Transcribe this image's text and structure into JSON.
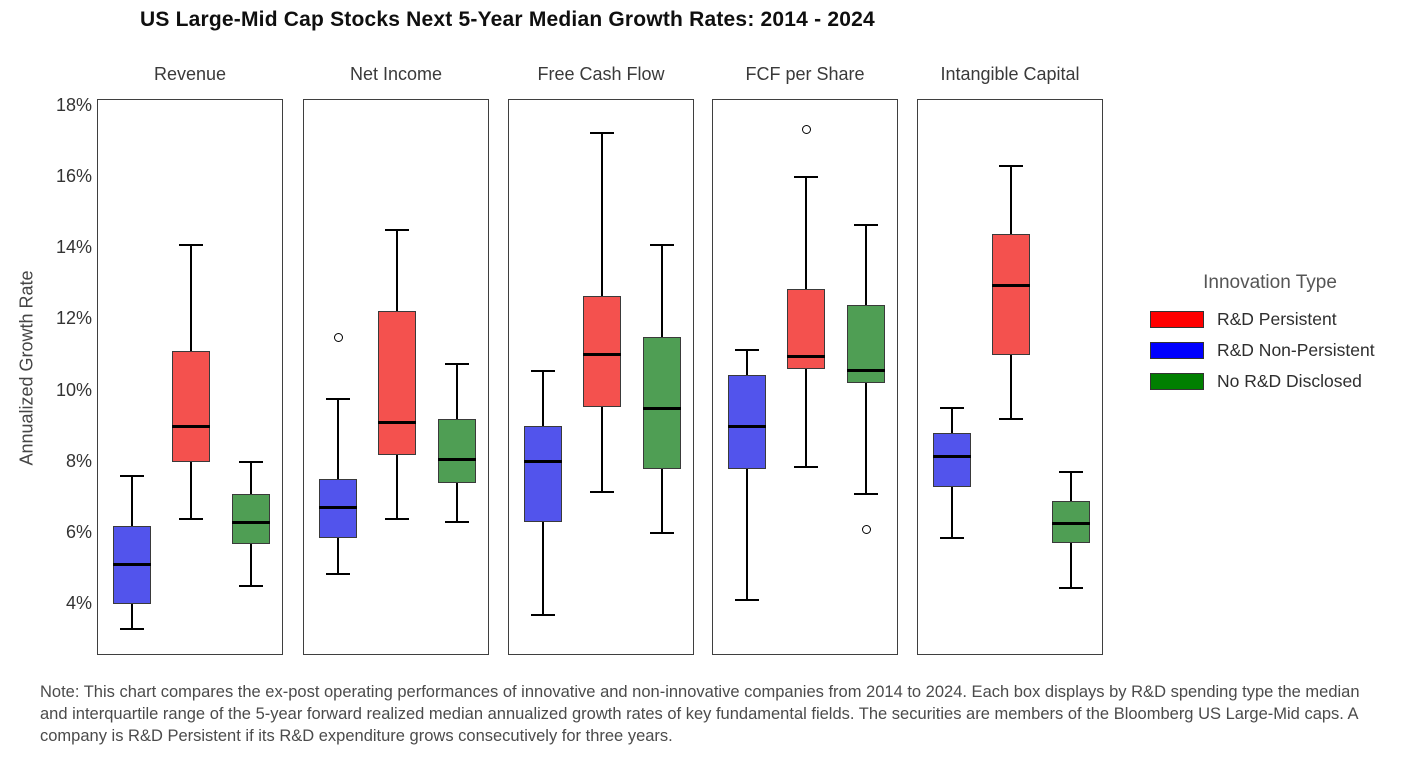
{
  "note": "Note: This chart compares the ex-post operating performances of innovative and non-innovative companies from 2014 to 2024. Each box displays by R&D spending type the median and interquartile range of the 5-year forward realized median annualized growth rates of key fundamental fields. The securities are members of the Bloomberg US Large-Mid caps. A company is R&D Persistent if its R&D expenditure grows consecutively for three years.",
  "chart_data": {
    "type": "boxplot",
    "title": "US Large-Mid Cap Stocks Next 5-Year Median Growth Rates: 2014 - 2024",
    "ylabel": "Annualized Growth Rate",
    "ytick_values": [
      18,
      16,
      14,
      12,
      10,
      8,
      6,
      4
    ],
    "ytick_labels": [
      "18%",
      "16%",
      "14%",
      "12%",
      "10%",
      "8%",
      "6%",
      "4%"
    ],
    "ylim": [
      2.6,
      18.2
    ],
    "grid": false,
    "legend_position": "right",
    "legend": {
      "title": "Innovation Type",
      "items": [
        {
          "label": "R&D Persistent",
          "color": "#ff0000"
        },
        {
          "label": "R&D Non-Persistent",
          "color": "#0000ff"
        },
        {
          "label": "No R&D Disclosed",
          "color": "#007f00"
        }
      ]
    },
    "series_order": [
      "R&D Non-Persistent",
      "R&D Persistent",
      "No R&D Disclosed"
    ],
    "box_fill_colors": {
      "R&D Non-Persistent": "#5254ec",
      "R&D Persistent": "#f4514e",
      "No R&D Disclosed": "#4f9e54"
    },
    "panels": [
      {
        "label": "Revenue",
        "boxes": [
          {
            "series": "R&D Non-Persistent",
            "low": 3.3,
            "q1": 4.0,
            "median": 5.1,
            "q3": 6.2,
            "high": 7.6,
            "outliers": []
          },
          {
            "series": "R&D Persistent",
            "low": 6.4,
            "q1": 8.0,
            "median": 9.0,
            "q3": 11.1,
            "high": 14.1,
            "outliers": []
          },
          {
            "series": "No R&D Disclosed",
            "low": 4.5,
            "q1": 5.7,
            "median": 6.3,
            "q3": 7.1,
            "high": 8.0,
            "outliers": []
          }
        ]
      },
      {
        "label": "Net Income",
        "boxes": [
          {
            "series": "R&D Non-Persistent",
            "low": 4.85,
            "q1": 5.85,
            "median": 6.7,
            "q3": 7.5,
            "high": 9.75,
            "outliers": [
              11.5
            ]
          },
          {
            "series": "R&D Persistent",
            "low": 6.4,
            "q1": 8.2,
            "median": 9.1,
            "q3": 12.25,
            "high": 14.5,
            "outliers": []
          },
          {
            "series": "No R&D Disclosed",
            "low": 6.3,
            "q1": 7.4,
            "median": 8.05,
            "q3": 9.2,
            "high": 10.75,
            "outliers": []
          }
        ]
      },
      {
        "label": "Free Cash Flow",
        "boxes": [
          {
            "series": "R&D Non-Persistent",
            "low": 3.7,
            "q1": 6.3,
            "median": 8.0,
            "q3": 9.0,
            "high": 10.55,
            "outliers": []
          },
          {
            "series": "R&D Persistent",
            "low": 7.15,
            "q1": 9.55,
            "median": 11.0,
            "q3": 12.65,
            "high": 17.25,
            "outliers": []
          },
          {
            "series": "No R&D Disclosed",
            "low": 6.0,
            "q1": 7.8,
            "median": 9.5,
            "q3": 11.5,
            "high": 14.1,
            "outliers": []
          }
        ]
      },
      {
        "label": "FCF per Share",
        "boxes": [
          {
            "series": "R&D Non-Persistent",
            "low": 4.1,
            "q1": 7.8,
            "median": 9.0,
            "q3": 10.45,
            "high": 11.15,
            "outliers": []
          },
          {
            "series": "R&D Persistent",
            "low": 7.85,
            "q1": 10.6,
            "median": 10.95,
            "q3": 12.85,
            "high": 16.0,
            "outliers": [
              17.35
            ]
          },
          {
            "series": "No R&D Disclosed",
            "low": 7.1,
            "q1": 10.2,
            "median": 10.55,
            "q3": 12.4,
            "high": 14.65,
            "outliers": [
              6.1
            ]
          }
        ]
      },
      {
        "label": "Intangible Capital",
        "boxes": [
          {
            "series": "R&D Non-Persistent",
            "low": 5.85,
            "q1": 7.3,
            "median": 8.15,
            "q3": 8.8,
            "high": 9.5,
            "outliers": []
          },
          {
            "series": "R&D Persistent",
            "low": 9.2,
            "q1": 11.0,
            "median": 12.95,
            "q3": 14.4,
            "high": 16.3,
            "outliers": []
          },
          {
            "series": "No R&D Disclosed",
            "low": 4.45,
            "q1": 5.7,
            "median": 6.25,
            "q3": 6.9,
            "high": 7.7,
            "outliers": []
          }
        ]
      }
    ]
  }
}
